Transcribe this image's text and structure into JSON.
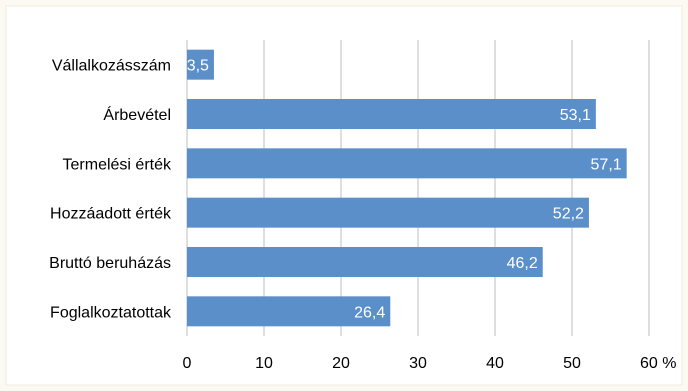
{
  "chart_data": {
    "type": "bar",
    "orientation": "horizontal",
    "categories": [
      "Vállalkozásszám",
      "Árbevétel",
      "Termelési érték",
      "Hozzáadott érték",
      "Bruttó beruházás",
      "Foglalkoztatottak"
    ],
    "values": [
      3.5,
      53.1,
      57.1,
      52.2,
      46.2,
      26.4
    ],
    "value_labels": [
      "3,5",
      "53,1",
      "57,1",
      "52,2",
      "46,2",
      "26,4"
    ],
    "xlim": [
      0,
      60
    ],
    "x_ticks": [
      0,
      10,
      20,
      30,
      40,
      50,
      60
    ],
    "x_tick_labels": [
      "0",
      "10",
      "20",
      "30",
      "40",
      "50",
      "60 %"
    ],
    "grid": "vertical",
    "bar_color": "#5b8fc9",
    "label_color": "#ffffff",
    "plot_background": "#ffffff",
    "page_background": "#fbf9f1",
    "grid_color": "#bfbfbf"
  }
}
